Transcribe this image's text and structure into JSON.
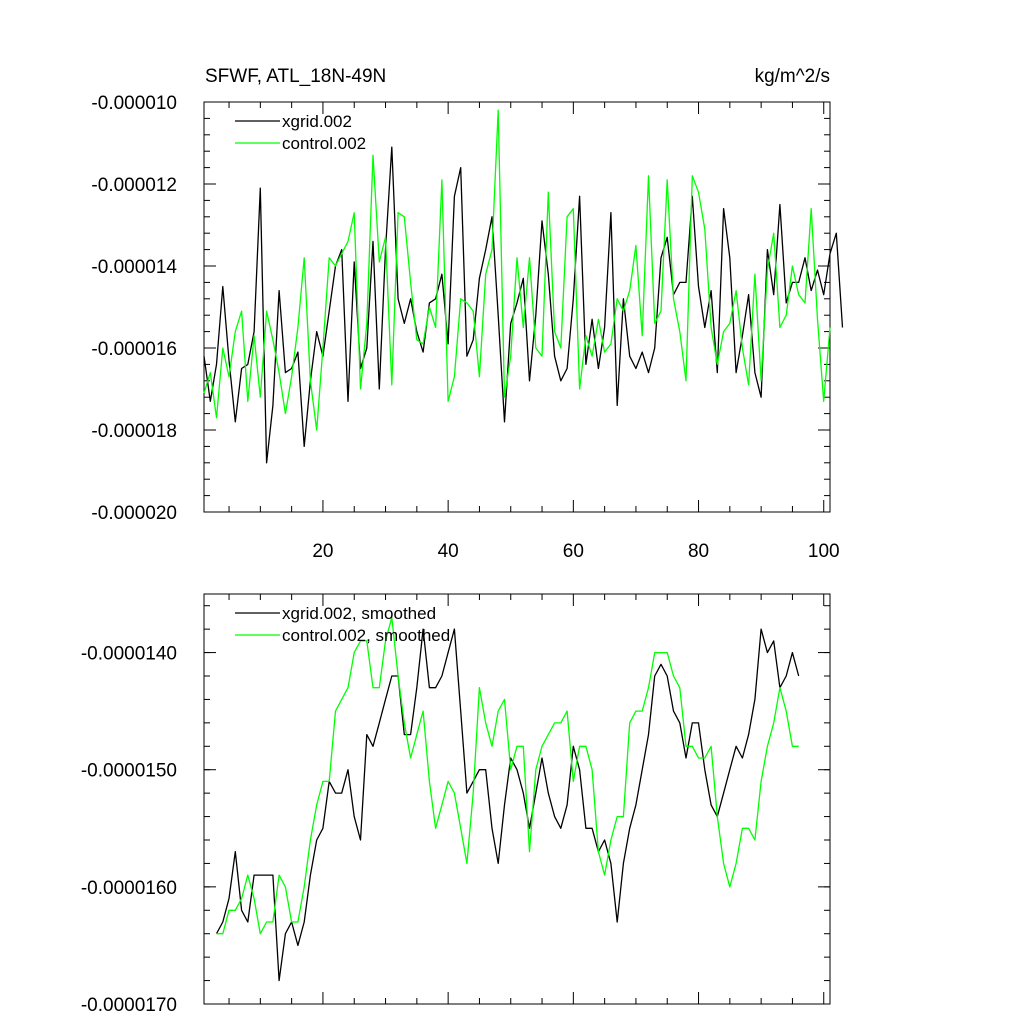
{
  "chart_data": [
    {
      "type": "line",
      "title": "SFWF, ATL_18N-49N",
      "units": "kg/m^2/s",
      "xlim": [
        1,
        101
      ],
      "ylim": [
        -2e-05,
        -1e-05
      ],
      "xticks": [
        20,
        40,
        60,
        80,
        100
      ],
      "xtick_labels": [
        "20",
        "40",
        "60",
        "80",
        "100"
      ],
      "yticks": [
        -1e-05,
        -1.2e-05,
        -1.4e-05,
        -1.6e-05,
        -1.8e-05,
        -2e-05
      ],
      "ytick_labels": [
        "-0.000010",
        "-0.000012",
        "-0.000014",
        "-0.000016",
        "-0.000018",
        "-0.000020"
      ],
      "legend": {
        "position": "top-left",
        "entries": [
          "xgrid.002",
          "control.002"
        ]
      },
      "x_start": 1,
      "series": [
        {
          "name": "xgrid.002",
          "color": "#000000",
          "values": [
            -1.62e-05,
            -1.73e-05,
            -1.64e-05,
            -1.45e-05,
            -1.63e-05,
            -1.78e-05,
            -1.65e-05,
            -1.64e-05,
            -1.56e-05,
            -1.21e-05,
            -1.88e-05,
            -1.74e-05,
            -1.46e-05,
            -1.66e-05,
            -1.65e-05,
            -1.61e-05,
            -1.84e-05,
            -1.68e-05,
            -1.56e-05,
            -1.62e-05,
            -1.51e-05,
            -1.4e-05,
            -1.36e-05,
            -1.73e-05,
            -1.39e-05,
            -1.65e-05,
            -1.6e-05,
            -1.34e-05,
            -1.7e-05,
            -1.36e-05,
            -1.11e-05,
            -1.48e-05,
            -1.54e-05,
            -1.48e-05,
            -1.56e-05,
            -1.61e-05,
            -1.49e-05,
            -1.48e-05,
            -1.42e-05,
            -1.59e-05,
            -1.23e-05,
            -1.16e-05,
            -1.62e-05,
            -1.58e-05,
            -1.43e-05,
            -1.36e-05,
            -1.28e-05,
            -1.52e-05,
            -1.78e-05,
            -1.54e-05,
            -1.49e-05,
            -1.43e-05,
            -1.68e-05,
            -1.52e-05,
            -1.29e-05,
            -1.42e-05,
            -1.62e-05,
            -1.68e-05,
            -1.65e-05,
            -1.48e-05,
            -1.23e-05,
            -1.64e-05,
            -1.53e-05,
            -1.65e-05,
            -1.55e-05,
            -1.27e-05,
            -1.74e-05,
            -1.48e-05,
            -1.62e-05,
            -1.65e-05,
            -1.61e-05,
            -1.66e-05,
            -1.6e-05,
            -1.38e-05,
            -1.33e-05,
            -1.47e-05,
            -1.44e-05,
            -1.44e-05,
            -1.23e-05,
            -1.45e-05,
            -1.55e-05,
            -1.46e-05,
            -1.66e-05,
            -1.26e-05,
            -1.38e-05,
            -1.66e-05,
            -1.57e-05,
            -1.47e-05,
            -1.66e-05,
            -1.72e-05,
            -1.36e-05,
            -1.47e-05,
            -1.25e-05,
            -1.49e-05,
            -1.44e-05,
            -1.44e-05,
            -1.38e-05,
            -1.46e-05,
            -1.41e-05,
            -1.47e-05,
            -1.37e-05,
            -1.32e-05,
            -1.55e-05
          ]
        },
        {
          "name": "control.002",
          "color": "#00ff00",
          "values": [
            -1.71e-05,
            -1.66e-05,
            -1.77e-05,
            -1.6e-05,
            -1.67e-05,
            -1.56e-05,
            -1.51e-05,
            -1.73e-05,
            -1.57e-05,
            -1.72e-05,
            -1.51e-05,
            -1.58e-05,
            -1.66e-05,
            -1.76e-05,
            -1.67e-05,
            -1.55e-05,
            -1.38e-05,
            -1.68e-05,
            -1.8e-05,
            -1.6e-05,
            -1.38e-05,
            -1.4e-05,
            -1.37e-05,
            -1.34e-05,
            -1.27e-05,
            -1.7e-05,
            -1.54e-05,
            -1.13e-05,
            -1.39e-05,
            -1.33e-05,
            -1.69e-05,
            -1.27e-05,
            -1.28e-05,
            -1.44e-05,
            -1.58e-05,
            -1.59e-05,
            -1.5e-05,
            -1.55e-05,
            -1.19e-05,
            -1.73e-05,
            -1.67e-05,
            -1.48e-05,
            -1.49e-05,
            -1.51e-05,
            -1.67e-05,
            -1.42e-05,
            -1.36e-05,
            -1.02e-05,
            -1.72e-05,
            -1.62e-05,
            -1.38e-05,
            -1.55e-05,
            -1.38e-05,
            -1.6e-05,
            -1.62e-05,
            -1.22e-05,
            -1.56e-05,
            -1.6e-05,
            -1.28e-05,
            -1.26e-05,
            -1.7e-05,
            -1.57e-05,
            -1.62e-05,
            -1.53e-05,
            -1.61e-05,
            -1.59e-05,
            -1.48e-05,
            -1.51e-05,
            -1.46e-05,
            -1.35e-05,
            -1.57e-05,
            -1.18e-05,
            -1.54e-05,
            -1.51e-05,
            -1.19e-05,
            -1.48e-05,
            -1.56e-05,
            -1.68e-05,
            -1.18e-05,
            -1.22e-05,
            -1.31e-05,
            -1.55e-05,
            -1.64e-05,
            -1.56e-05,
            -1.54e-05,
            -1.46e-05,
            -1.6e-05,
            -1.69e-05,
            -1.42e-05,
            -1.68e-05,
            -1.41e-05,
            -1.32e-05,
            -1.55e-05,
            -1.52e-05,
            -1.4e-05,
            -1.47e-05,
            -1.49e-05,
            -1.26e-05,
            -1.53e-05,
            -1.73e-05,
            -1.55e-05
          ]
        }
      ]
    },
    {
      "type": "line",
      "xlim": [
        1,
        101
      ],
      "ylim": [
        -1.7e-05,
        -1.35e-05
      ],
      "xticks": [
        20,
        40,
        60,
        80,
        100
      ],
      "yticks": [
        -1.4e-05,
        -1.5e-05,
        -1.6e-05,
        -1.7e-05
      ],
      "ytick_labels": [
        "-0.0000140",
        "-0.0000150",
        "-0.0000160",
        "-0.0000170"
      ],
      "legend": {
        "position": "top-left",
        "entries": [
          "xgrid.002, smoothed",
          "control.002, smoothed"
        ]
      },
      "x_start": 3,
      "series": [
        {
          "name": "xgrid.002, smoothed",
          "color": "#000000",
          "values": [
            -1.64e-05,
            -1.63e-05,
            -1.61e-05,
            -1.57e-05,
            -1.62e-05,
            -1.63e-05,
            -1.59e-05,
            -1.59e-05,
            -1.59e-05,
            -1.59e-05,
            -1.68e-05,
            -1.64e-05,
            -1.63e-05,
            -1.65e-05,
            -1.63e-05,
            -1.59e-05,
            -1.56e-05,
            -1.55e-05,
            -1.51e-05,
            -1.52e-05,
            -1.52e-05,
            -1.5e-05,
            -1.54e-05,
            -1.56e-05,
            -1.47e-05,
            -1.48e-05,
            -1.46e-05,
            -1.44e-05,
            -1.42e-05,
            -1.42e-05,
            -1.47e-05,
            -1.47e-05,
            -1.43e-05,
            -1.38e-05,
            -1.43e-05,
            -1.43e-05,
            -1.42e-05,
            -1.4e-05,
            -1.38e-05,
            -1.45e-05,
            -1.52e-05,
            -1.51e-05,
            -1.5e-05,
            -1.5e-05,
            -1.55e-05,
            -1.58e-05,
            -1.53e-05,
            -1.49e-05,
            -1.5e-05,
            -1.52e-05,
            -1.55e-05,
            -1.52e-05,
            -1.49e-05,
            -1.52e-05,
            -1.54e-05,
            -1.55e-05,
            -1.53e-05,
            -1.48e-05,
            -1.5e-05,
            -1.55e-05,
            -1.55e-05,
            -1.57e-05,
            -1.56e-05,
            -1.58e-05,
            -1.63e-05,
            -1.58e-05,
            -1.55e-05,
            -1.53e-05,
            -1.5e-05,
            -1.47e-05,
            -1.42e-05,
            -1.41e-05,
            -1.42e-05,
            -1.45e-05,
            -1.46e-05,
            -1.49e-05,
            -1.46e-05,
            -1.46e-05,
            -1.5e-05,
            -1.53e-05,
            -1.54e-05,
            -1.52e-05,
            -1.5e-05,
            -1.48e-05,
            -1.49e-05,
            -1.47e-05,
            -1.44e-05,
            -1.38e-05,
            -1.4e-05,
            -1.39e-05,
            -1.43e-05,
            -1.42e-05,
            -1.4e-05,
            -1.42e-05
          ]
        },
        {
          "name": "control.002, smoothed",
          "color": "#00ff00",
          "values": [
            -1.64e-05,
            -1.64e-05,
            -1.62e-05,
            -1.62e-05,
            -1.61e-05,
            -1.59e-05,
            -1.61e-05,
            -1.64e-05,
            -1.63e-05,
            -1.63e-05,
            -1.59e-05,
            -1.6e-05,
            -1.63e-05,
            -1.63e-05,
            -1.6e-05,
            -1.56e-05,
            -1.53e-05,
            -1.51e-05,
            -1.51e-05,
            -1.45e-05,
            -1.44e-05,
            -1.43e-05,
            -1.4e-05,
            -1.39e-05,
            -1.39e-05,
            -1.43e-05,
            -1.43e-05,
            -1.39e-05,
            -1.37e-05,
            -1.42e-05,
            -1.46e-05,
            -1.49e-05,
            -1.47e-05,
            -1.45e-05,
            -1.51e-05,
            -1.55e-05,
            -1.53e-05,
            -1.51e-05,
            -1.52e-05,
            -1.55e-05,
            -1.58e-05,
            -1.52e-05,
            -1.43e-05,
            -1.46e-05,
            -1.48e-05,
            -1.45e-05,
            -1.44e-05,
            -1.5e-05,
            -1.48e-05,
            -1.48e-05,
            -1.57e-05,
            -1.5e-05,
            -1.48e-05,
            -1.47e-05,
            -1.46e-05,
            -1.46e-05,
            -1.45e-05,
            -1.51e-05,
            -1.48e-05,
            -1.48e-05,
            -1.5e-05,
            -1.57e-05,
            -1.59e-05,
            -1.56e-05,
            -1.54e-05,
            -1.54e-05,
            -1.46e-05,
            -1.45e-05,
            -1.45e-05,
            -1.43e-05,
            -1.4e-05,
            -1.4e-05,
            -1.4e-05,
            -1.42e-05,
            -1.43e-05,
            -1.48e-05,
            -1.48e-05,
            -1.49e-05,
            -1.49e-05,
            -1.48e-05,
            -1.54e-05,
            -1.58e-05,
            -1.6e-05,
            -1.58e-05,
            -1.55e-05,
            -1.55e-05,
            -1.56e-05,
            -1.51e-05,
            -1.48e-05,
            -1.46e-05,
            -1.43e-05,
            -1.45e-05,
            -1.48e-05,
            -1.48e-05
          ]
        }
      ]
    }
  ]
}
